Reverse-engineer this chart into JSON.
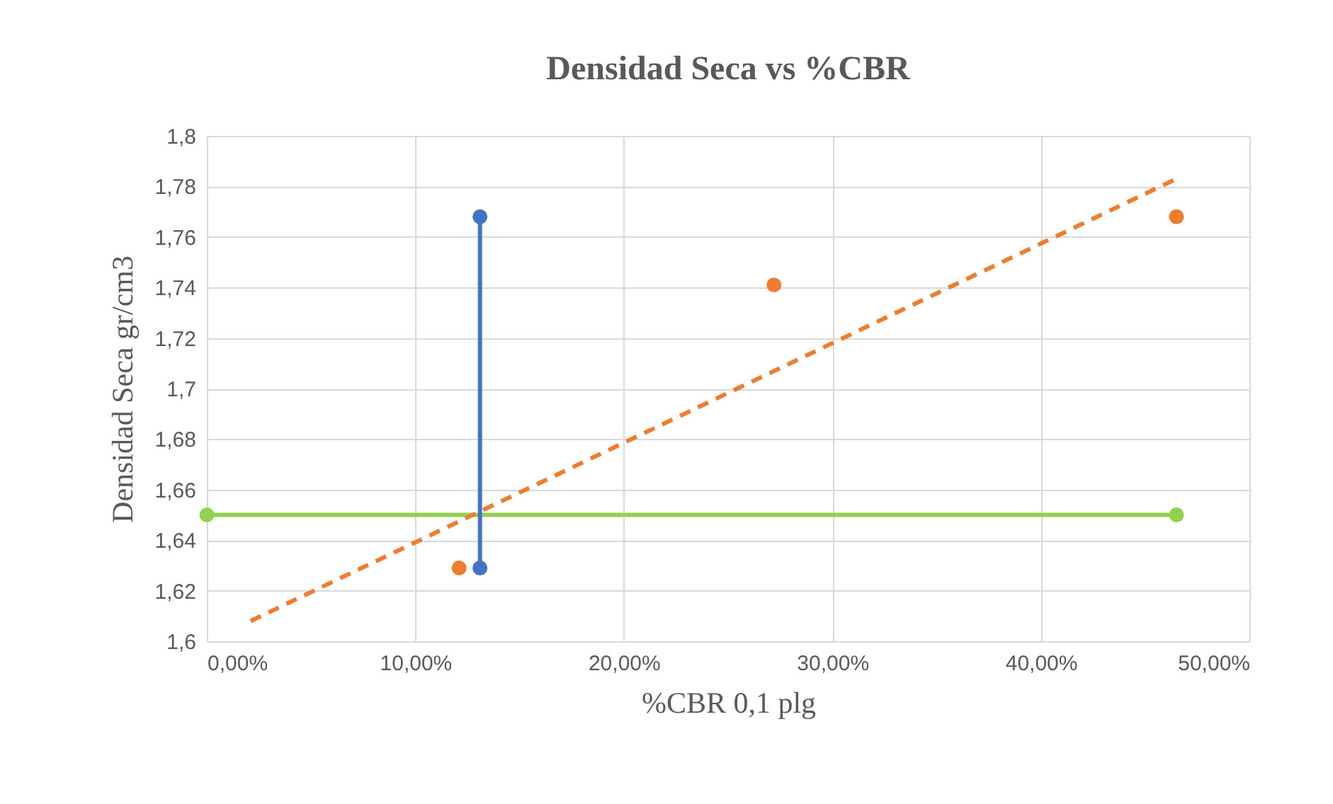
{
  "chart_data": {
    "type": "scatter",
    "title": "Densidad Seca vs %CBR",
    "xlabel": "%CBR 0,1 plg",
    "ylabel": "Densidad Seca gr/cm3",
    "xlim": [
      0,
      50
    ],
    "xticks": [
      {
        "value": 0,
        "label": "0,00%"
      },
      {
        "value": 10,
        "label": "10,00%"
      },
      {
        "value": 20,
        "label": "20,00%"
      },
      {
        "value": 30,
        "label": "30,00%"
      },
      {
        "value": 40,
        "label": "40,00%"
      },
      {
        "value": 50,
        "label": "50,00%"
      }
    ],
    "ylim": [
      1.6,
      1.8
    ],
    "yticks": [
      {
        "value": 1.6,
        "label": "1,6"
      },
      {
        "value": 1.62,
        "label": "1,62"
      },
      {
        "value": 1.64,
        "label": "1,64"
      },
      {
        "value": 1.66,
        "label": "1,66"
      },
      {
        "value": 1.68,
        "label": "1,68"
      },
      {
        "value": 1.7,
        "label": "1,7"
      },
      {
        "value": 1.72,
        "label": "1,72"
      },
      {
        "value": 1.74,
        "label": "1,74"
      },
      {
        "value": 1.76,
        "label": "1,76"
      },
      {
        "value": 1.78,
        "label": "1,78"
      },
      {
        "value": 1.8,
        "label": "1,8"
      }
    ],
    "grid": true,
    "series": [
      {
        "type": "line",
        "color": "#92d050",
        "x": [
          0,
          46.5
        ],
        "values": [
          1.65,
          1.65
        ],
        "marker": "circle",
        "line_style": "solid"
      },
      {
        "type": "line",
        "color": "#4472c4",
        "x": [
          13.1,
          13.1
        ],
        "values": [
          1.768,
          1.629
        ],
        "marker": "circle",
        "line_style": "solid"
      },
      {
        "type": "line",
        "color": "#ed7d31",
        "x": [
          2.1,
          46.5
        ],
        "values": [
          1.608,
          1.783
        ],
        "marker": "none",
        "line_style": "dashed"
      },
      {
        "color": "#ed7d31",
        "x": [
          12.1,
          27.2,
          46.5
        ],
        "values": [
          1.629,
          1.741,
          1.768
        ],
        "marker": "circle"
      }
    ]
  }
}
